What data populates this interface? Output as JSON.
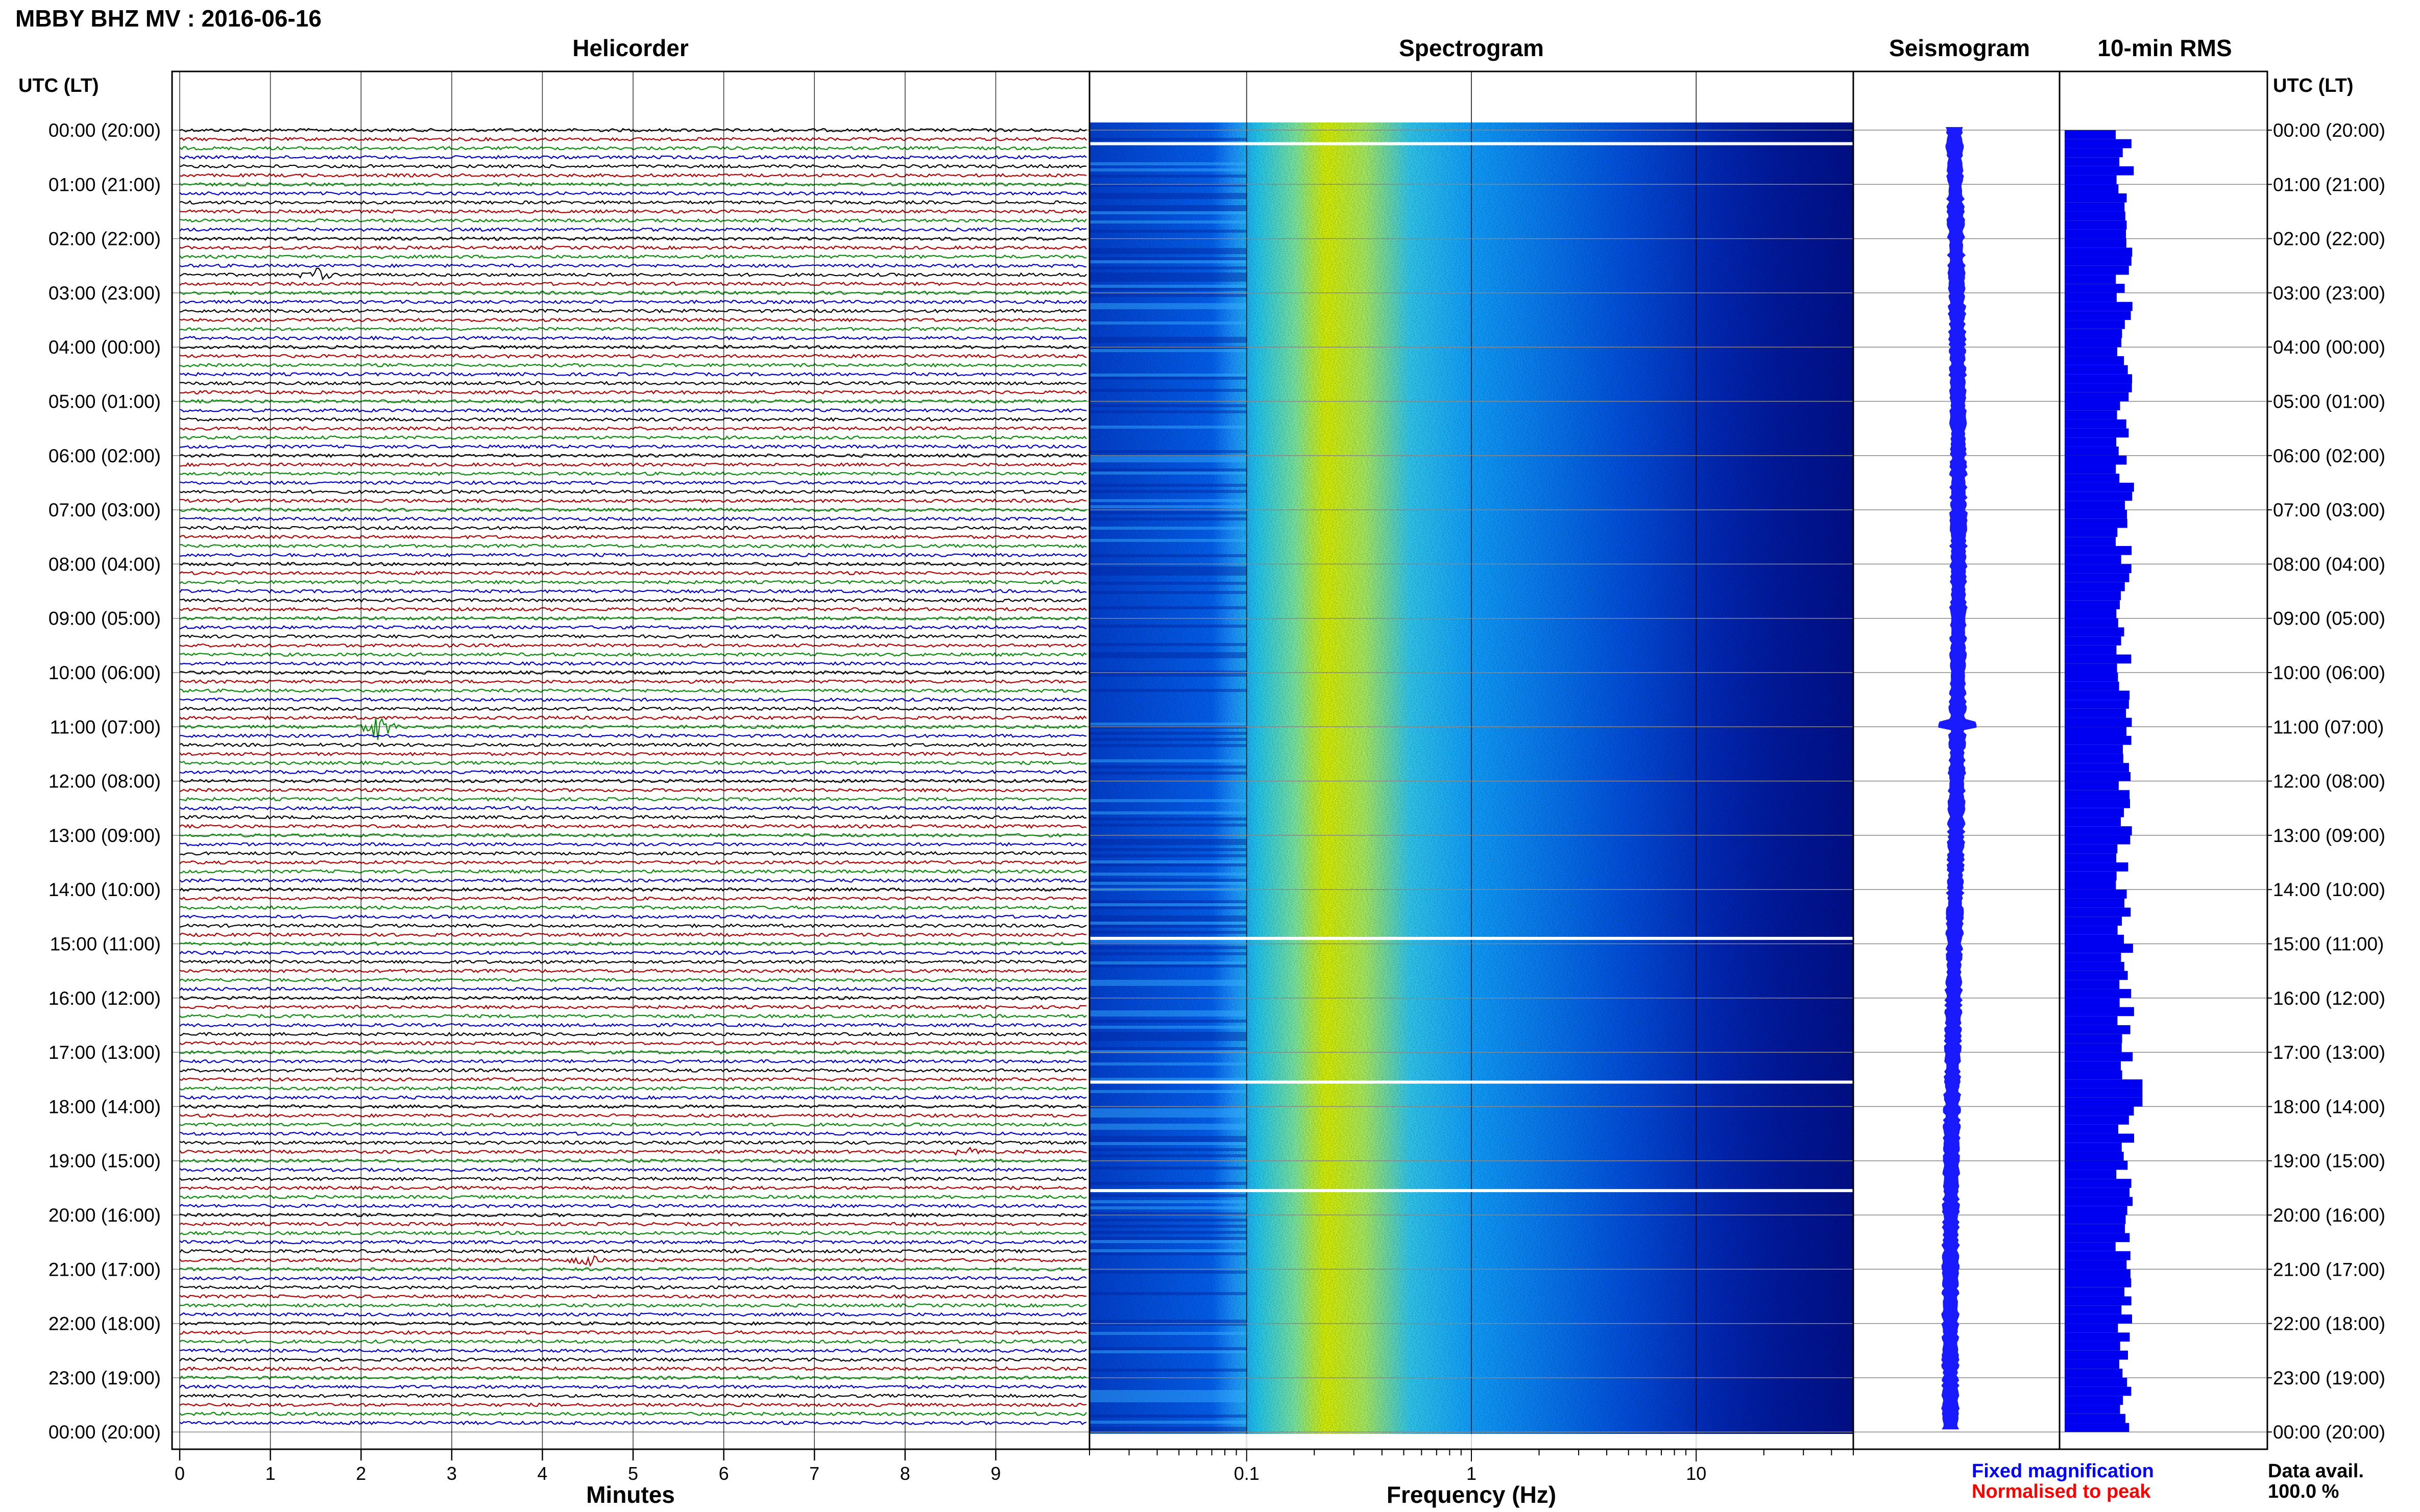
{
  "header": {
    "title": "MBBY BHZ MV : 2016-06-16",
    "time_axis_label_left": "UTC (LT)",
    "time_axis_label_right": "UTC (LT)"
  },
  "panels": {
    "helicorder": "Helicorder",
    "spectrogram": "Spectrogram",
    "seismogram": "Seismogram",
    "rms": "10-min RMS"
  },
  "footer": {
    "fixed_magnification": "Fixed magnification",
    "normalised_to_peak": "Normalised to peak",
    "data_avail_label": "Data avail.",
    "data_avail_value": "100.0 %"
  },
  "colors": {
    "trace_cycle": [
      "#000000",
      "#b00000",
      "#0a8a0a",
      "#0000c8"
    ],
    "seismogram": "#1a1aff",
    "rms_bar": "#0000f0",
    "fixed_magnification": "#0000ff",
    "normalised_to_peak": "#ff0000",
    "spectrogram_low": "#00008c",
    "spectrogram_peak": "#d8f000"
  },
  "chart_data": [
    {
      "type": "line",
      "name": "helicorder",
      "title": "Helicorder",
      "xlabel": "Minutes",
      "x_ticks": [
        0,
        1,
        2,
        3,
        4,
        5,
        6,
        7,
        8,
        9
      ],
      "xlim": [
        0,
        10
      ],
      "y_time_labels": [
        "00:00 (20:00)",
        "01:00 (21:00)",
        "02:00 (22:00)",
        "03:00 (23:00)",
        "04:00 (00:00)",
        "05:00 (01:00)",
        "06:00 (02:00)",
        "07:00 (03:00)",
        "08:00 (04:00)",
        "09:00 (05:00)",
        "10:00 (06:00)",
        "11:00 (07:00)",
        "12:00 (08:00)",
        "13:00 (09:00)",
        "14:00 (10:00)",
        "15:00 (11:00)",
        "16:00 (12:00)",
        "17:00 (13:00)",
        "18:00 (14:00)",
        "19:00 (15:00)",
        "20:00 (16:00)",
        "21:00 (17:00)",
        "22:00 (18:00)",
        "23:00 (19:00)",
        "00:00 (20:00)"
      ],
      "traces_per_hour": 6,
      "trace_minutes": 10,
      "events": [
        {
          "utc_hour": 10.95,
          "minute": 2.2,
          "amplitude": "large"
        },
        {
          "utc_hour": 2.65,
          "minute": 1.5,
          "amplitude": "medium"
        },
        {
          "utc_hour": 20.85,
          "minute": 4.5,
          "amplitude": "medium"
        },
        {
          "utc_hour": 18.8,
          "minute": 8.7,
          "amplitude": "small"
        }
      ],
      "grid": true
    },
    {
      "type": "heatmap",
      "name": "spectrogram",
      "title": "Spectrogram",
      "xlabel": "Frequency (Hz)",
      "x_scale": "log",
      "xlim": [
        0.02,
        50
      ],
      "x_tick_labels": [
        "0.1",
        "1",
        "10"
      ],
      "x_tick_values": [
        0.1,
        1,
        10
      ],
      "peak_frequency_hz": 0.3,
      "data_gap_hours_utc": [
        0.25,
        14.9,
        17.55,
        19.55
      ],
      "grid": true
    },
    {
      "type": "line",
      "name": "seismogram",
      "title": "Seismogram",
      "orientation": "vertical",
      "events_utc_hour": [
        10.95
      ],
      "grid": true
    },
    {
      "type": "bar",
      "name": "10-min RMS",
      "title": "10-min RMS",
      "orientation": "horizontal",
      "bins_per_hour": 6,
      "relative_level_range": [
        0.55,
        0.72
      ],
      "grid": true
    }
  ]
}
